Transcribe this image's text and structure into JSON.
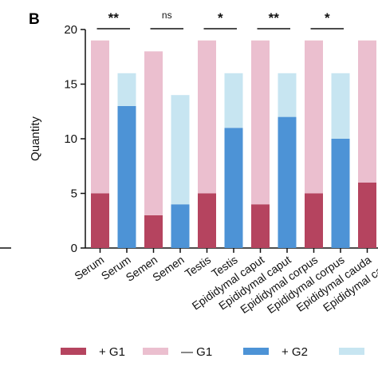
{
  "panel_label": "B",
  "colors": {
    "g1_pos": "#b5445f",
    "g1_neg": "#ebbfcf",
    "g2_pos": "#4d93d6",
    "g2_neg": "#c7e5f1",
    "axis": "#111111"
  },
  "chart_data": {
    "type": "bar",
    "stacked": true,
    "ylabel": "Quantity",
    "ylim": [
      0,
      20
    ],
    "yticks": [
      0,
      5,
      10,
      15,
      20
    ],
    "categories": [
      "Serum",
      "Serum",
      "Semen",
      "Semen",
      "Testis",
      "Testis",
      "Epididymal caput",
      "Epididymal caput",
      "Epididymal corpus",
      "Epididymal corpus",
      "Epididymal cauda",
      "Epididymal cauda"
    ],
    "groups": [
      "G1",
      "G2",
      "G1",
      "G2",
      "G1",
      "G2",
      "G1",
      "G2",
      "G1",
      "G2",
      "G1",
      "G2"
    ],
    "series": [
      {
        "name": "+ G1",
        "values": [
          5,
          null,
          3,
          null,
          5,
          null,
          4,
          null,
          5,
          null,
          6,
          null
        ]
      },
      {
        "name": "— G1",
        "values": [
          14,
          null,
          15,
          null,
          14,
          null,
          15,
          null,
          14,
          null,
          13,
          null
        ]
      },
      {
        "name": "+ G2",
        "values": [
          null,
          13,
          null,
          4,
          null,
          11,
          null,
          12,
          null,
          10,
          null,
          null
        ]
      },
      {
        "name": "",
        "values": [
          null,
          3,
          null,
          10,
          null,
          5,
          null,
          4,
          null,
          6,
          null,
          null
        ]
      }
    ],
    "significance": [
      {
        "pair": [
          0,
          1
        ],
        "label": "**"
      },
      {
        "pair": [
          2,
          3
        ],
        "label": "ns"
      },
      {
        "pair": [
          4,
          5
        ],
        "label": "*"
      },
      {
        "pair": [
          6,
          7
        ],
        "label": "**"
      },
      {
        "pair": [
          8,
          9
        ],
        "label": "*"
      }
    ],
    "legend_position": "bottom"
  }
}
